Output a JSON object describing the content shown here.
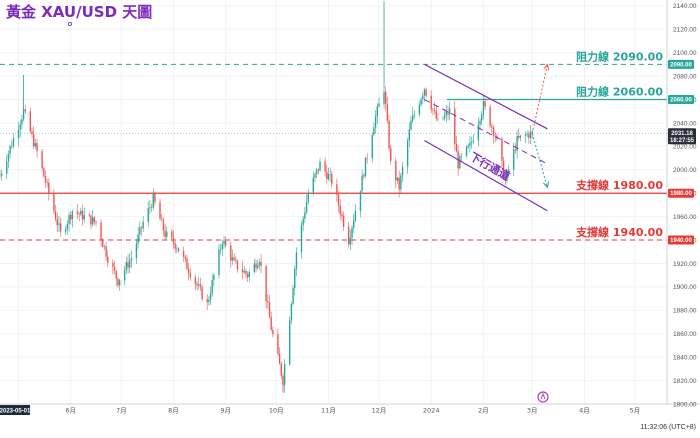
{
  "title": "黃金 XAU/USD 天圖",
  "clock": "11:32:06 (UTC+8)",
  "colors": {
    "up": "#26a69a",
    "down": "#ef5350",
    "resistance": "#26a69a",
    "support": "#e53935",
    "channel": "#7b2cbf",
    "title": "#7b2cbf"
  },
  "chart_data": {
    "type": "candlestick",
    "ylim": [
      1800,
      2145
    ],
    "y_ticks": [
      1800,
      1820,
      1840,
      1860,
      1880,
      1900,
      1920,
      1940,
      1960,
      1980,
      2000,
      2020,
      2040,
      2060,
      2080,
      2100,
      2120,
      2140
    ],
    "x_ticks": [
      {
        "label": "2023-05-01",
        "date": "2023-05-01",
        "highlight": true
      },
      {
        "label": "6月",
        "date": "2023-06-01"
      },
      {
        "label": "7月",
        "date": "2023-07-01"
      },
      {
        "label": "8月",
        "date": "2023-08-01"
      },
      {
        "label": "9月",
        "date": "2023-09-01"
      },
      {
        "label": "10月",
        "date": "2023-10-01"
      },
      {
        "label": "11月",
        "date": "2023-11-01"
      },
      {
        "label": "12月",
        "date": "2023-12-01"
      },
      {
        "label": "2024",
        "date": "2024-01-01"
      },
      {
        "label": "2月",
        "date": "2024-02-01"
      },
      {
        "label": "3月",
        "date": "2024-03-01"
      },
      {
        "label": "4月",
        "date": "2024-04-01"
      },
      {
        "label": "5月",
        "date": "2024-05-01"
      }
    ],
    "x_start": "2023-04-20",
    "x_end": "2024-05-20",
    "price_path": [
      [
        "2023-04-20",
        1995
      ],
      [
        "2023-05-04",
        2050
      ],
      [
        "2023-05-12",
        2015
      ],
      [
        "2023-05-19",
        1980
      ],
      [
        "2023-05-26",
        1945
      ],
      [
        "2023-06-02",
        1965
      ],
      [
        "2023-06-09",
        1960
      ],
      [
        "2023-06-16",
        1955
      ],
      [
        "2023-06-23",
        1925
      ],
      [
        "2023-06-29",
        1905
      ],
      [
        "2023-07-07",
        1925
      ],
      [
        "2023-07-14",
        1955
      ],
      [
        "2023-07-20",
        1975
      ],
      [
        "2023-07-27",
        1945
      ],
      [
        "2023-08-03",
        1935
      ],
      [
        "2023-08-10",
        1915
      ],
      [
        "2023-08-21",
        1885
      ],
      [
        "2023-08-30",
        1940
      ],
      [
        "2023-09-06",
        1920
      ],
      [
        "2023-09-14",
        1910
      ],
      [
        "2023-09-21",
        1925
      ],
      [
        "2023-09-28",
        1865
      ],
      [
        "2023-10-05",
        1820
      ],
      [
        "2023-10-13",
        1930
      ],
      [
        "2023-10-20",
        1980
      ],
      [
        "2023-10-27",
        2005
      ],
      [
        "2023-11-03",
        1990
      ],
      [
        "2023-11-13",
        1940
      ],
      [
        "2023-11-20",
        1985
      ],
      [
        "2023-11-28",
        2040
      ],
      [
        "2023-12-04",
        2070
      ],
      [
        "2023-12-08",
        2005
      ],
      [
        "2023-12-13",
        1985
      ],
      [
        "2023-12-20",
        2040
      ],
      [
        "2023-12-28",
        2070
      ],
      [
        "2024-01-05",
        2040
      ],
      [
        "2024-01-12",
        2050
      ],
      [
        "2024-01-17",
        2005
      ],
      [
        "2024-01-24",
        2020
      ],
      [
        "2024-02-01",
        2055
      ],
      [
        "2024-02-08",
        2030
      ],
      [
        "2024-02-14",
        1990
      ],
      [
        "2024-02-21",
        2025
      ],
      [
        "2024-02-27",
        2030
      ],
      [
        "2024-03-01",
        2031
      ]
    ],
    "current_price": {
      "value": 2031.18,
      "label": "2031.18",
      "countdown": "18:27:55"
    },
    "levels": [
      {
        "label": "阻力線 2090.00",
        "value": 2090,
        "badge": "2090.00",
        "kind": "resistance",
        "style": "dashed"
      },
      {
        "label": "阻力線 2060.00",
        "value": 2060,
        "badge": "2060.00",
        "kind": "resistance",
        "style": "solid"
      },
      {
        "label": "支撐線 1980.00",
        "value": 1980,
        "badge": "1980.00",
        "kind": "support",
        "style": "solid"
      },
      {
        "label": "支撐線 1940.00",
        "value": 1940,
        "badge": "1940.00",
        "kind": "support",
        "style": "dashed"
      }
    ],
    "channel": {
      "label": "下行通道",
      "upper": [
        [
          "2023-12-28",
          2090
        ],
        [
          "2024-03-10",
          2035
        ]
      ],
      "middle": [
        [
          "2023-12-28",
          2060
        ],
        [
          "2024-03-10",
          2005
        ]
      ],
      "lower": [
        [
          "2023-12-28",
          2025
        ],
        [
          "2024-03-10",
          1965
        ]
      ]
    },
    "projections": [
      {
        "from": [
          "2024-03-01",
          2031
        ],
        "to": [
          "2024-03-10",
          2090
        ],
        "kind": "up"
      },
      {
        "from": [
          "2024-03-01",
          2031
        ],
        "to": [
          "2024-03-10",
          1985
        ],
        "kind": "down"
      }
    ]
  }
}
